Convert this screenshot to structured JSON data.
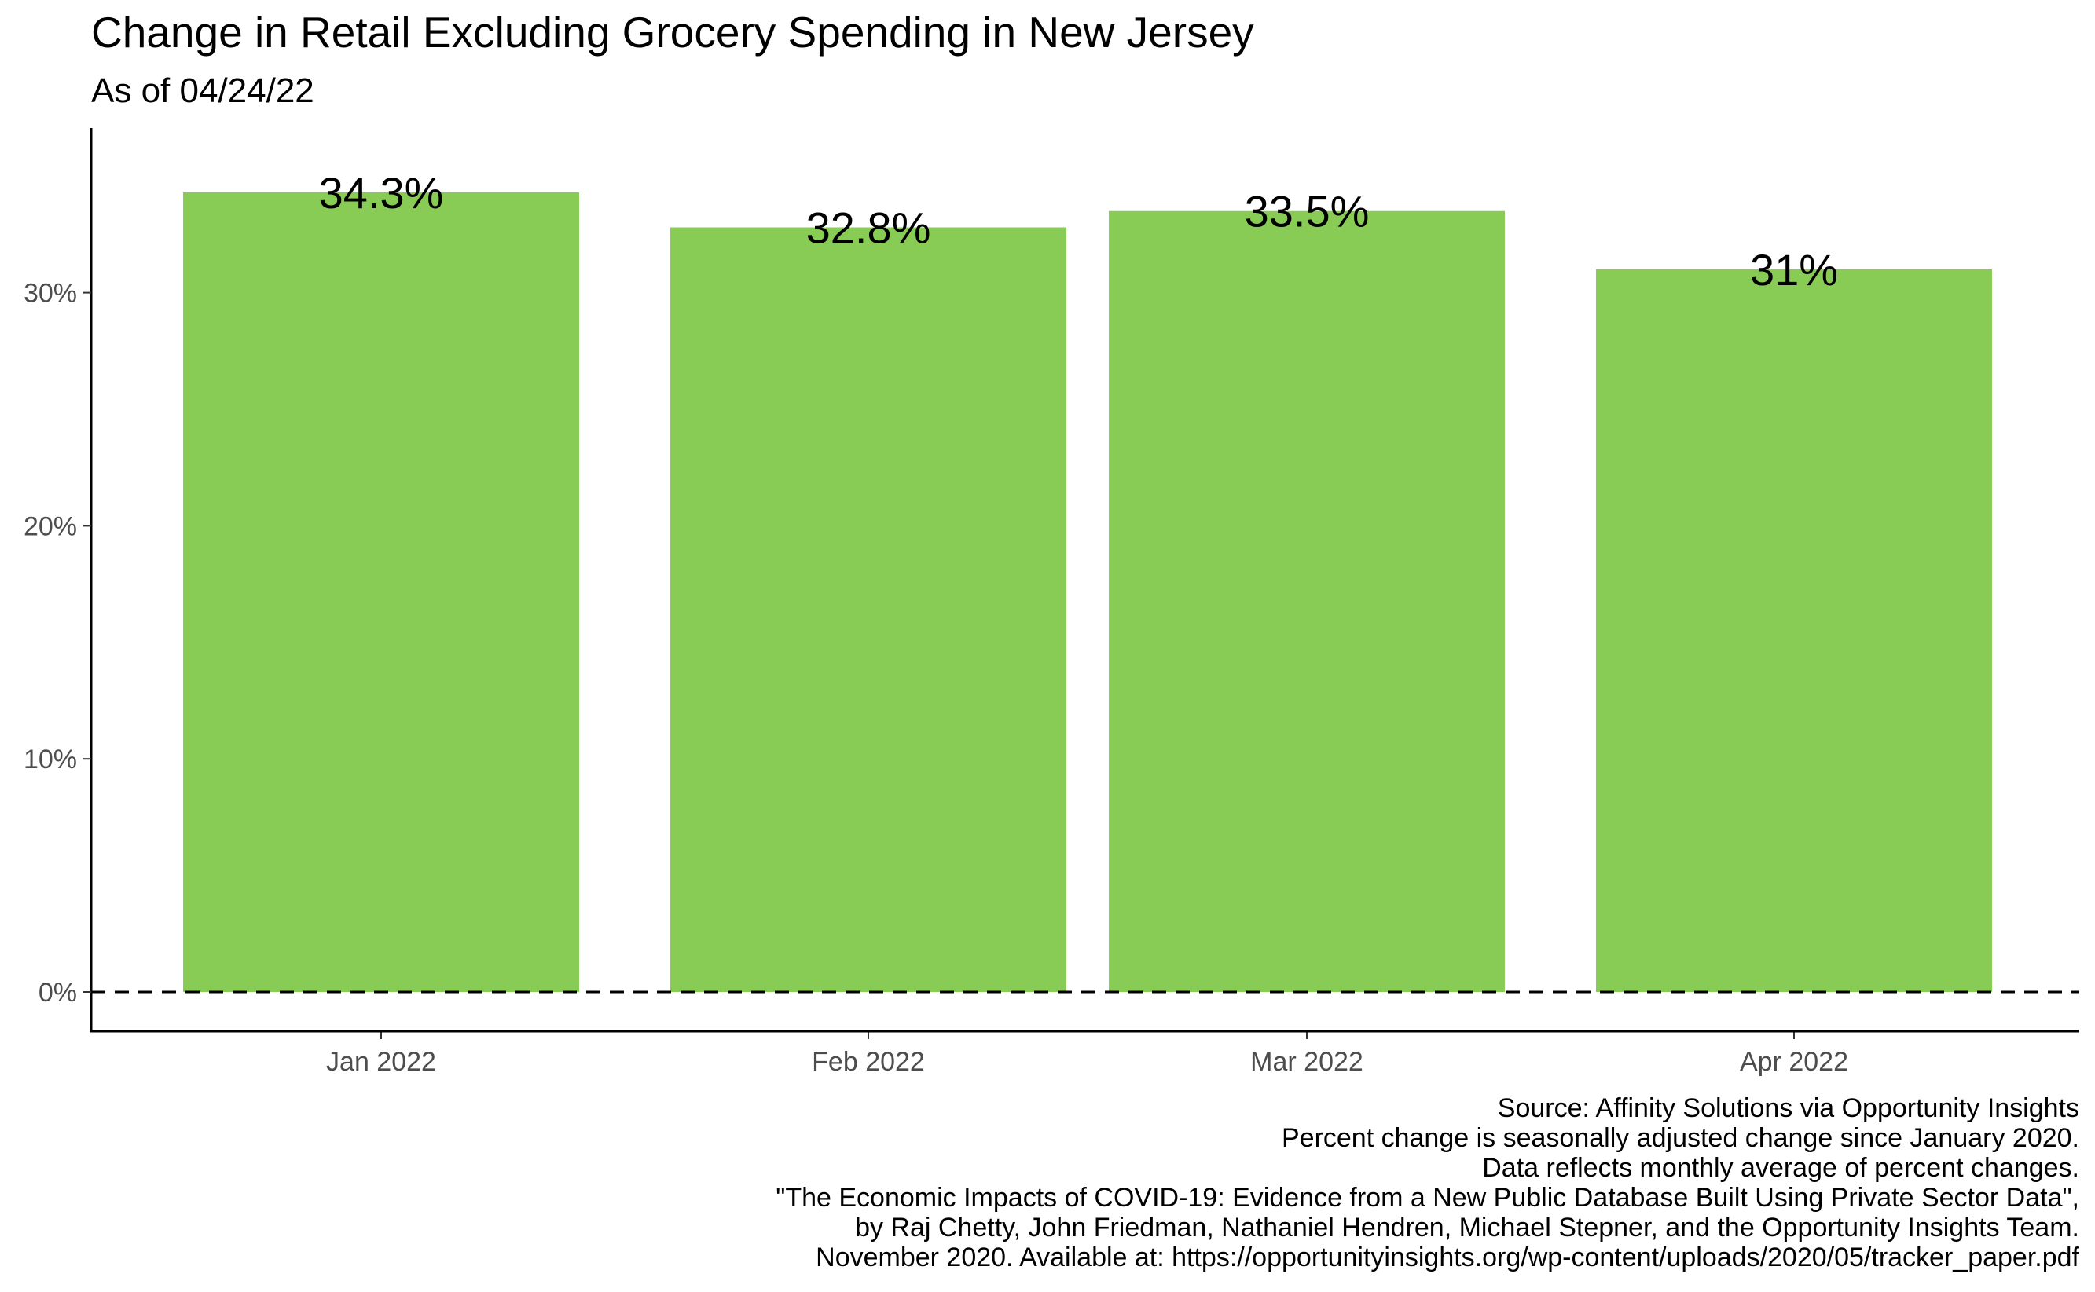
{
  "chart_data": {
    "type": "bar",
    "title": "Change in Retail Excluding Grocery Spending in New Jersey",
    "subtitle": "As of 04/24/22",
    "xlabel": "",
    "ylabel": "",
    "categories": [
      "Jan 2022",
      "Feb 2022",
      "Mar 2022",
      "Apr 2022"
    ],
    "x_positions": [
      0,
      1,
      1.9,
      2.9
    ],
    "values": [
      34.3,
      32.8,
      33.5,
      31.0
    ],
    "data_labels": [
      "34.3%",
      "32.8%",
      "33.5%",
      "31%"
    ],
    "ylim": [
      0,
      36
    ],
    "y_ticks": [
      0,
      10,
      20,
      30
    ],
    "y_tick_labels": [
      "0%",
      "10%",
      "20%",
      "30%"
    ],
    "reference_line": {
      "y": 0,
      "style": "dashed"
    },
    "bar_color": "#88cc55",
    "grid": false,
    "legend": "none",
    "caption": [
      "Source: Affinity Solutions via Opportunity Insights",
      "Percent change is seasonally adjusted change since January 2020.",
      "Data reflects monthly average of percent changes.",
      "\"The Economic Impacts of COVID-19: Evidence from a New Public Database Built Using Private Sector Data\",",
      "by Raj Chetty, John Friedman, Nathaniel Hendren, Michael Stepner, and the Opportunity Insights Team.",
      "November 2020. Available at: https://opportunityinsights.org/wp-content/uploads/2020/05/tracker_paper.pdf"
    ]
  }
}
